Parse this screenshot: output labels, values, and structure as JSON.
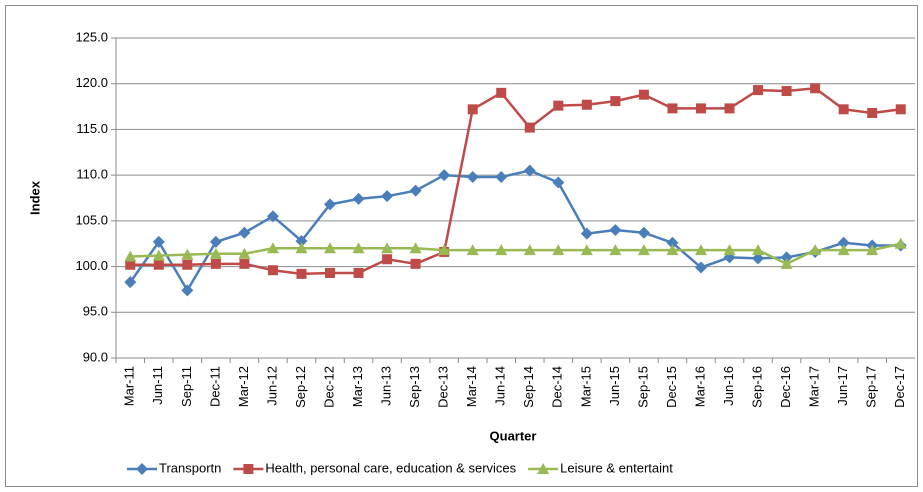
{
  "chart_data": {
    "type": "line",
    "x_label": "Quarter",
    "y_label": "Index",
    "categories": [
      "Mar-11",
      "Jun-11",
      "Sep-11",
      "Dec-11",
      "Mar-12",
      "Jun-12",
      "Sep-12",
      "Dec-12",
      "Mar-13",
      "Jun-13",
      "Sep-13",
      "Dec-13",
      "Mar-14",
      "Jun-14",
      "Sep-14",
      "Dec-14",
      "Mar-15",
      "Jun-15",
      "Sep-15",
      "Dec-15",
      "Mar-16",
      "Jun-16",
      "Sep-16",
      "Dec-16",
      "Mar-17",
      "Jun-17",
      "Sep-17",
      "Dec-17"
    ],
    "series": [
      {
        "name": "Transportn",
        "color": "#4a7ebb",
        "marker": "diamond",
        "values": [
          98.3,
          102.7,
          97.4,
          102.7,
          103.7,
          105.5,
          102.8,
          106.8,
          107.4,
          107.7,
          108.3,
          110.0,
          109.8,
          109.8,
          110.5,
          109.2,
          103.6,
          104.0,
          103.7,
          102.6,
          99.9,
          101.0,
          100.9,
          101.0,
          101.6,
          102.6,
          102.3,
          102.3
        ]
      },
      {
        "name": "Health, personal care, education & services",
        "color": "#be4b48",
        "marker": "square",
        "values": [
          100.2,
          100.2,
          100.2,
          100.3,
          100.3,
          99.6,
          99.2,
          99.3,
          99.3,
          100.8,
          100.3,
          101.6,
          117.2,
          119.0,
          115.2,
          117.6,
          117.7,
          118.1,
          118.8,
          117.3,
          117.3,
          117.3,
          119.3,
          119.2,
          119.5,
          117.2,
          116.8,
          117.2
        ]
      },
      {
        "name": "Leisure & entertaint",
        "color": "#98b954",
        "marker": "triangle",
        "values": [
          101.1,
          101.2,
          101.3,
          101.4,
          101.4,
          102.0,
          102.0,
          102.0,
          102.0,
          102.0,
          102.0,
          101.8,
          101.8,
          101.8,
          101.8,
          101.8,
          101.8,
          101.8,
          101.8,
          101.8,
          101.8,
          101.8,
          101.8,
          100.3,
          101.8,
          101.8,
          101.8,
          102.5
        ]
      }
    ],
    "ylim": [
      90,
      125
    ],
    "yticks": [
      {
        "value": 90,
        "label": "90.0"
      },
      {
        "value": 95,
        "label": "95.0"
      },
      {
        "value": 100,
        "label": "100.0"
      },
      {
        "value": 105,
        "label": "105.0"
      },
      {
        "value": 110,
        "label": "110.0"
      },
      {
        "value": 115,
        "label": "115.0"
      },
      {
        "value": 120,
        "label": "120.0"
      },
      {
        "value": 125,
        "label": "125.0"
      }
    ],
    "grid": true,
    "legend": "bottom"
  }
}
